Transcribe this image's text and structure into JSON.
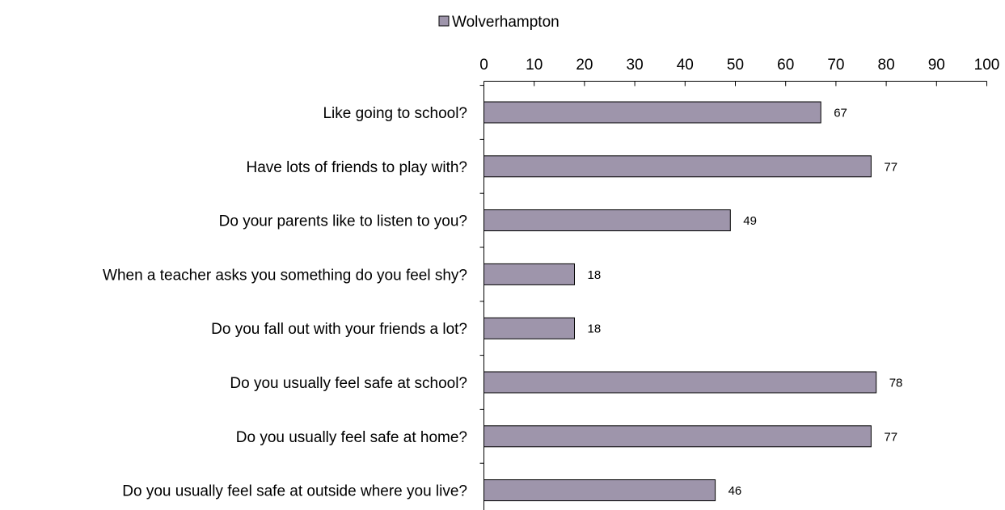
{
  "chart_data": {
    "type": "bar",
    "orientation": "horizontal",
    "categories": [
      "Like going to school?",
      "Have lots of friends to play with?",
      "Do your parents like to listen to you?",
      "When a teacher asks you something do you feel shy?",
      "Do you fall out with your friends a lot?",
      "Do you usually feel safe at school?",
      "Do you usually feel safe at home?",
      "Do you usually feel safe at outside where you live?"
    ],
    "series": [
      {
        "name": "Wolverhampton",
        "values": [
          67,
          77,
          49,
          18,
          18,
          78,
          77,
          46
        ],
        "color": "#9e95ab"
      }
    ],
    "xlim": [
      0,
      100
    ],
    "xticks": [
      "0",
      "10",
      "20",
      "30",
      "40",
      "50",
      "60",
      "70",
      "80",
      "90",
      "100"
    ],
    "xaxis_position": "top",
    "grid": false,
    "legend": {
      "position": "top-center",
      "entries": [
        "Wolverhampton"
      ]
    },
    "data_labels": true,
    "title": "",
    "xlabel": "",
    "ylabel": ""
  }
}
